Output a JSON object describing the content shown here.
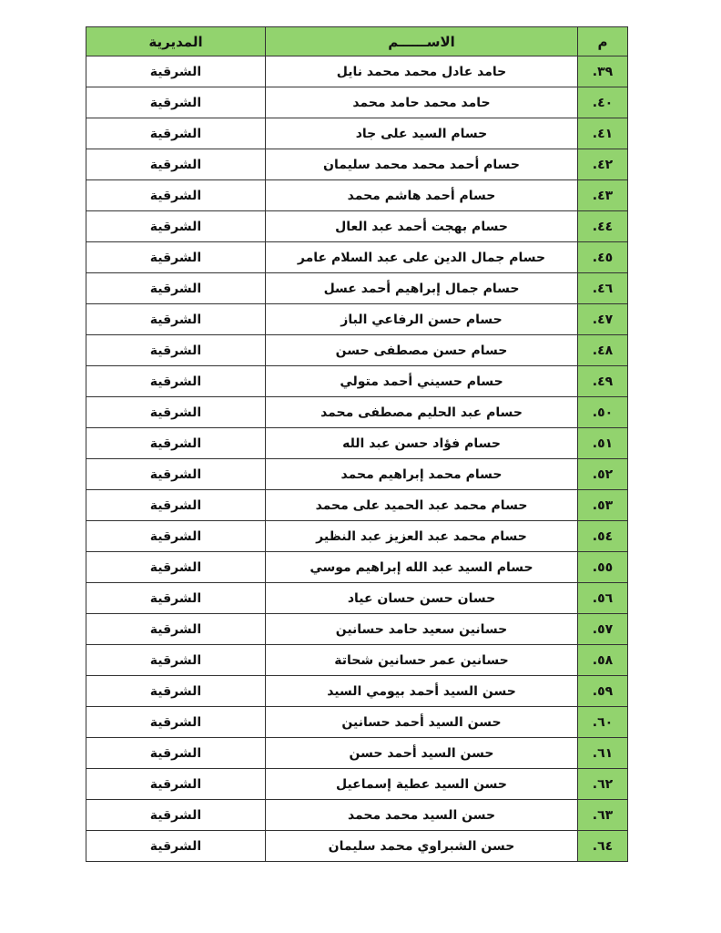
{
  "table": {
    "headers": {
      "num": "م",
      "name": "الاســــــم",
      "directorate": "المديرية"
    },
    "rows": [
      {
        "num": "٣٩.",
        "name": "حامد عادل محمد محمد نايل",
        "directorate": "الشرقية"
      },
      {
        "num": "٤٠.",
        "name": "حامد محمد حامد محمد",
        "directorate": "الشرقية"
      },
      {
        "num": "٤١.",
        "name": "حسام السيد على جاد",
        "directorate": "الشرقية"
      },
      {
        "num": "٤٢.",
        "name": "حسام أحمد محمد محمد سليمان",
        "directorate": "الشرقية"
      },
      {
        "num": "٤٣.",
        "name": "حسام أحمد هاشم محمد",
        "directorate": "الشرقية"
      },
      {
        "num": "٤٤.",
        "name": "حسام بهجت أحمد عبد العال",
        "directorate": "الشرقية"
      },
      {
        "num": "٤٥.",
        "name": "حسام جمال الدين على عبد السلام عامر",
        "directorate": "الشرقية"
      },
      {
        "num": "٤٦.",
        "name": "حسام جمال إبراهيم أحمد عسل",
        "directorate": "الشرقية"
      },
      {
        "num": "٤٧.",
        "name": "حسام حسن الرفاعي الباز",
        "directorate": "الشرقية"
      },
      {
        "num": "٤٨.",
        "name": "حسام حسن مصطفى حسن",
        "directorate": "الشرقية"
      },
      {
        "num": "٤٩.",
        "name": "حسام حسيني أحمد متولي",
        "directorate": "الشرقية"
      },
      {
        "num": "٥٠.",
        "name": "حسام عبد الحليم مصطفى محمد",
        "directorate": "الشرقية"
      },
      {
        "num": "٥١.",
        "name": "حسام فؤاد حسن عبد الله",
        "directorate": "الشرقية"
      },
      {
        "num": "٥٢.",
        "name": "حسام محمد إبراهيم محمد",
        "directorate": "الشرقية"
      },
      {
        "num": "٥٣.",
        "name": "حسام محمد عبد الحميد على محمد",
        "directorate": "الشرقية"
      },
      {
        "num": "٥٤.",
        "name": "حسام محمد عبد العزيز عبد النظير",
        "directorate": "الشرقية"
      },
      {
        "num": "٥٥.",
        "name": "حسام السيد عبد الله إبراهيم موسي",
        "directorate": "الشرقية"
      },
      {
        "num": "٥٦.",
        "name": "حسان حسن حسان عياد",
        "directorate": "الشرقية"
      },
      {
        "num": "٥٧.",
        "name": "حسانين سعيد حامد حسانين",
        "directorate": "الشرقية"
      },
      {
        "num": "٥٨.",
        "name": "حسانين عمر حسانين شحاتة",
        "directorate": "الشرقية"
      },
      {
        "num": "٥٩.",
        "name": "حسن السيد أحمد بيومي السيد",
        "directorate": "الشرقية"
      },
      {
        "num": "٦٠.",
        "name": "حسن السيد أحمد حسانين",
        "directorate": "الشرقية"
      },
      {
        "num": "٦١.",
        "name": "حسن السيد أحمد حسن",
        "directorate": "الشرقية"
      },
      {
        "num": "٦٢.",
        "name": "حسن السيد عطية إسماعيل",
        "directorate": "الشرقية"
      },
      {
        "num": "٦٣.",
        "name": "حسن السيد محمد محمد",
        "directorate": "الشرقية"
      },
      {
        "num": "٦٤.",
        "name": "حسن الشبراوي محمد سليمان",
        "directorate": "الشرقية"
      }
    ]
  },
  "colors": {
    "header_bg": "#92d36e",
    "number_col_bg": "#92d36e"
  }
}
